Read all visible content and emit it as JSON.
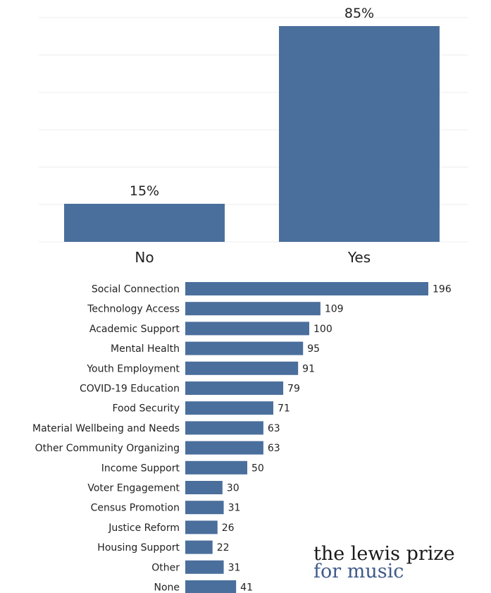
{
  "chart_data": [
    {
      "type": "bar",
      "categories": [
        "No",
        "Yes"
      ],
      "values": [
        15,
        85
      ],
      "data_labels": [
        "15%",
        "85%"
      ],
      "title": "",
      "xlabel": "",
      "ylabel": "",
      "ylim": [
        0,
        100
      ],
      "grid": true,
      "color": "#4a6f9c"
    },
    {
      "type": "bar",
      "orientation": "horizontal",
      "categories": [
        "Social Connection",
        "Technology Access",
        "Academic Support",
        "Mental Health",
        "Youth Employment",
        "COVID-19 Education",
        "Food Security",
        "Material Wellbeing and Needs",
        "Other Community Organizing",
        "Income Support",
        "Voter Engagement",
        "Census Promotion",
        "Justice Reform",
        "Housing Support",
        "Other",
        "None"
      ],
      "values": [
        196,
        109,
        100,
        95,
        91,
        79,
        71,
        63,
        63,
        50,
        30,
        31,
        26,
        22,
        31,
        41
      ],
      "title": "",
      "xlabel": "",
      "ylabel": "",
      "xlim": [
        0,
        200
      ],
      "grid": false,
      "color": "#4a6f9c"
    }
  ],
  "logo": {
    "line1": "the lewis prize",
    "line2": "for music"
  }
}
